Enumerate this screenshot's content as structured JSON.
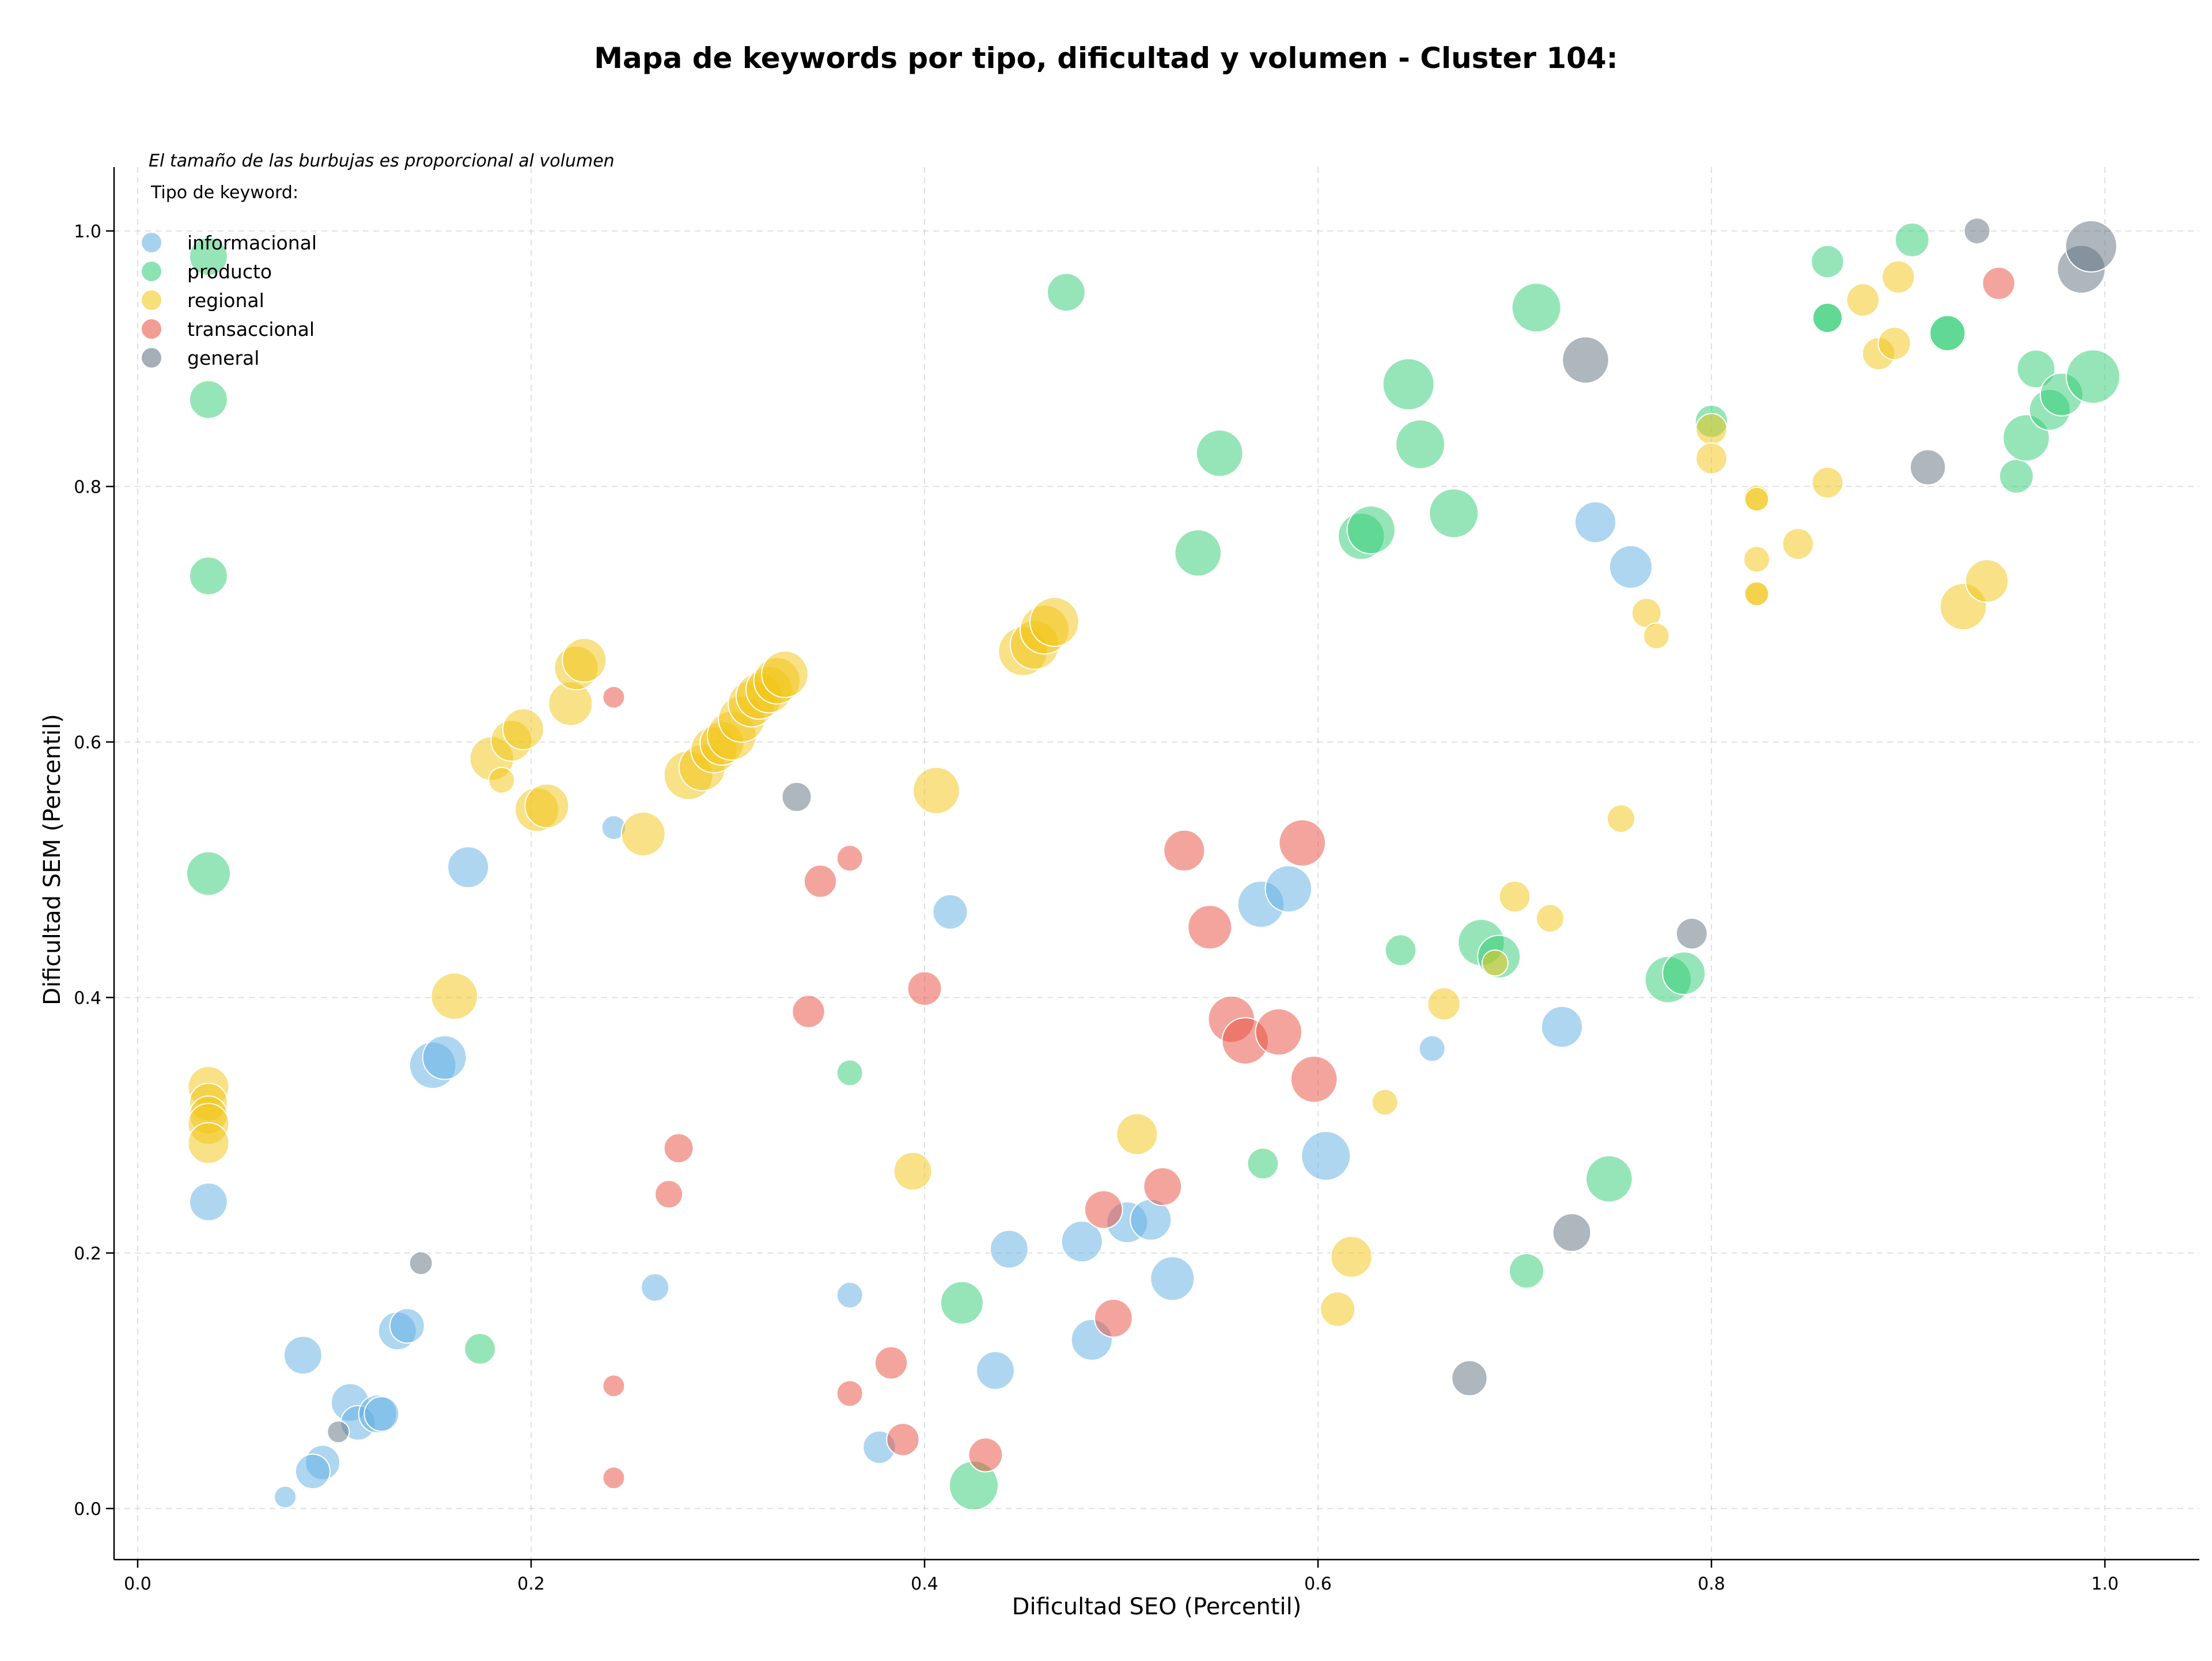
{
  "chart_data": {
    "type": "scatter",
    "title": "Mapa de keywords por tipo, dificultad y volumen - Cluster 104:",
    "xlabel": "Dificultad SEO (Percentil)",
    "ylabel": "Dificultad SEM (Percentil)",
    "note": "El tamaño de las burbujas es proporcional al volumen",
    "legend_title": "Tipo de keyword:",
    "legend_position": "top-left",
    "grid": true,
    "xlim": [
      -0.012,
      1.048
    ],
    "ylim": [
      -0.04,
      1.05
    ],
    "xticks": [
      "0.0",
      "0.2",
      "0.4",
      "0.6",
      "0.8",
      "1.0"
    ],
    "yticks": [
      "0.0",
      "0.2",
      "0.4",
      "0.6",
      "0.8",
      "1.0"
    ],
    "colors": {
      "informacional": "#5dade2",
      "producto": "#2ecc71",
      "regional": "#f1c40f",
      "transaccional": "#e74c3c",
      "general": "#5d6d7e"
    },
    "series": [
      {
        "name": "informacional",
        "points": [
          [
            0.036,
            0.24,
            3
          ],
          [
            0.084,
            0.12,
            3
          ],
          [
            0.108,
            0.083,
            3
          ],
          [
            0.112,
            0.067,
            2.5
          ],
          [
            0.122,
            0.074,
            3
          ],
          [
            0.124,
            0.074,
            2.5
          ],
          [
            0.094,
            0.036,
            2.5
          ],
          [
            0.089,
            0.029,
            2.5
          ],
          [
            0.075,
            0.009,
            1
          ],
          [
            0.132,
            0.139,
            3
          ],
          [
            0.137,
            0.143,
            2.5
          ],
          [
            0.15,
            0.347,
            4.5
          ],
          [
            0.156,
            0.353,
            4
          ],
          [
            0.168,
            0.502,
            3.5
          ],
          [
            0.242,
            0.533,
            1.2
          ],
          [
            0.263,
            0.173,
            1.6
          ],
          [
            0.362,
            0.167,
            1.4
          ],
          [
            0.377,
            0.048,
            2.2
          ],
          [
            0.413,
            0.467,
            2.5
          ],
          [
            0.436,
            0.108,
            3
          ],
          [
            0.443,
            0.203,
            3
          ],
          [
            0.48,
            0.209,
            3.5
          ],
          [
            0.485,
            0.132,
            3.5
          ],
          [
            0.503,
            0.224,
            3.5
          ],
          [
            0.515,
            0.226,
            3.5
          ],
          [
            0.526,
            0.18,
            4
          ],
          [
            0.571,
            0.473,
            4.5
          ],
          [
            0.585,
            0.485,
            4.5
          ],
          [
            0.604,
            0.276,
            5
          ],
          [
            0.658,
            0.36,
            1.4
          ],
          [
            0.724,
            0.377,
            3.5
          ],
          [
            0.741,
            0.772,
            3.5
          ],
          [
            0.759,
            0.737,
            3.8
          ]
        ]
      },
      {
        "name": "producto",
        "points": [
          [
            0.036,
            0.98,
            3
          ],
          [
            0.036,
            0.868,
            3
          ],
          [
            0.036,
            0.73,
            3
          ],
          [
            0.036,
            0.497,
            4
          ],
          [
            0.174,
            0.125,
            2
          ],
          [
            0.362,
            0.341,
            1.4
          ],
          [
            0.419,
            0.161,
            3.8
          ],
          [
            0.425,
            0.018,
            5
          ],
          [
            0.472,
            0.952,
            3
          ],
          [
            0.539,
            0.748,
            4.5
          ],
          [
            0.55,
            0.826,
            4.5
          ],
          [
            0.572,
            0.27,
            2
          ],
          [
            0.622,
            0.761,
            4.5
          ],
          [
            0.627,
            0.766,
            4.8
          ],
          [
            0.642,
            0.437,
            2
          ],
          [
            0.646,
            0.88,
            5.5
          ],
          [
            0.652,
            0.833,
            5
          ],
          [
            0.669,
            0.779,
            5
          ],
          [
            0.683,
            0.443,
            4.5
          ],
          [
            0.692,
            0.432,
            3.8
          ],
          [
            0.706,
            0.186,
            2.5
          ],
          [
            0.711,
            0.94,
            5
          ],
          [
            0.748,
            0.258,
            4.5
          ],
          [
            0.778,
            0.414,
            4.5
          ],
          [
            0.786,
            0.419,
            3.8
          ],
          [
            0.8,
            0.851,
            2.2
          ],
          [
            0.859,
            0.976,
            2.2
          ],
          [
            0.859,
            0.932,
            2
          ],
          [
            0.859,
            0.932,
            1.8
          ],
          [
            0.902,
            0.993,
            2.4
          ],
          [
            0.92,
            0.92,
            3
          ],
          [
            0.92,
            0.92,
            2.6
          ],
          [
            0.955,
            0.808,
            2.4
          ],
          [
            0.96,
            0.838,
            4.5
          ],
          [
            0.965,
            0.892,
            3
          ],
          [
            0.972,
            0.86,
            3.5
          ],
          [
            0.978,
            0.872,
            3.8
          ],
          [
            0.994,
            0.886,
            6
          ]
        ]
      },
      {
        "name": "regional",
        "points": [
          [
            0.036,
            0.33,
            3.5
          ],
          [
            0.036,
            0.318,
            3
          ],
          [
            0.036,
            0.308,
            3
          ],
          [
            0.036,
            0.301,
            3.5
          ],
          [
            0.036,
            0.286,
            3.5
          ],
          [
            0.161,
            0.401,
            4.5
          ],
          [
            0.18,
            0.587,
            4
          ],
          [
            0.185,
            0.57,
            1.4
          ],
          [
            0.19,
            0.601,
            3.5
          ],
          [
            0.196,
            0.61,
            3.5
          ],
          [
            0.203,
            0.547,
            4
          ],
          [
            0.208,
            0.55,
            4
          ],
          [
            0.22,
            0.63,
            4
          ],
          [
            0.223,
            0.658,
            4
          ],
          [
            0.227,
            0.664,
            4
          ],
          [
            0.257,
            0.528,
            4
          ],
          [
            0.28,
            0.574,
            5
          ],
          [
            0.287,
            0.58,
            4.5
          ],
          [
            0.293,
            0.594,
            4.5
          ],
          [
            0.297,
            0.599,
            4
          ],
          [
            0.302,
            0.605,
            5
          ],
          [
            0.307,
            0.618,
            4.5
          ],
          [
            0.312,
            0.63,
            4.5
          ],
          [
            0.316,
            0.636,
            4.5
          ],
          [
            0.321,
            0.641,
            4.5
          ],
          [
            0.325,
            0.648,
            4.5
          ],
          [
            0.329,
            0.653,
            4.5
          ],
          [
            0.394,
            0.264,
            3
          ],
          [
            0.406,
            0.562,
            4.5
          ],
          [
            0.45,
            0.671,
            5
          ],
          [
            0.456,
            0.676,
            5
          ],
          [
            0.461,
            0.688,
            5
          ],
          [
            0.466,
            0.694,
            5
          ],
          [
            0.508,
            0.293,
            3.5
          ],
          [
            0.61,
            0.156,
            2.5
          ],
          [
            0.617,
            0.197,
            3.5
          ],
          [
            0.634,
            0.318,
            1.4
          ],
          [
            0.664,
            0.395,
            2.2
          ],
          [
            0.69,
            0.427,
            1.4
          ],
          [
            0.7,
            0.479,
            2
          ],
          [
            0.718,
            0.462,
            1.6
          ],
          [
            0.754,
            0.54,
            1.6
          ],
          [
            0.767,
            0.701,
            1.8
          ],
          [
            0.772,
            0.683,
            1.4
          ],
          [
            0.8,
            0.845,
            2
          ],
          [
            0.8,
            0.822,
            2
          ],
          [
            0.823,
            0.791,
            1.4
          ],
          [
            0.823,
            0.79,
            1.2
          ],
          [
            0.823,
            0.743,
            1.4
          ],
          [
            0.823,
            0.716,
            1.4
          ],
          [
            0.823,
            0.716,
            1.2
          ],
          [
            0.844,
            0.755,
            2
          ],
          [
            0.859,
            0.803,
            2
          ],
          [
            0.877,
            0.946,
            2.2
          ],
          [
            0.885,
            0.904,
            2.2
          ],
          [
            0.893,
            0.912,
            2.2
          ],
          [
            0.895,
            0.964,
            2.2
          ],
          [
            0.928,
            0.706,
            4.5
          ],
          [
            0.94,
            0.726,
            3.8
          ]
        ]
      },
      {
        "name": "transaccional",
        "points": [
          [
            0.242,
            0.635,
            1
          ],
          [
            0.242,
            0.096,
            1
          ],
          [
            0.242,
            0.024,
            1
          ],
          [
            0.27,
            0.246,
            1.6
          ],
          [
            0.275,
            0.282,
            1.8
          ],
          [
            0.341,
            0.389,
            2.2
          ],
          [
            0.347,
            0.491,
            2.2
          ],
          [
            0.362,
            0.509,
            1.4
          ],
          [
            0.362,
            0.09,
            1.4
          ],
          [
            0.383,
            0.114,
            2.2
          ],
          [
            0.389,
            0.054,
            2.2
          ],
          [
            0.4,
            0.407,
            2.4
          ],
          [
            0.431,
            0.042,
            2.4
          ],
          [
            0.491,
            0.234,
            3
          ],
          [
            0.496,
            0.149,
            3
          ],
          [
            0.521,
            0.252,
            3
          ],
          [
            0.532,
            0.515,
            3.5
          ],
          [
            0.545,
            0.455,
            4
          ],
          [
            0.556,
            0.383,
            4.5
          ],
          [
            0.563,
            0.366,
            4.5
          ],
          [
            0.58,
            0.373,
            4.5
          ],
          [
            0.592,
            0.521,
            4.5
          ],
          [
            0.598,
            0.336,
            4.5
          ],
          [
            0.946,
            0.959,
            2.2
          ]
        ]
      },
      {
        "name": "general",
        "points": [
          [
            0.102,
            0.06,
            1
          ],
          [
            0.144,
            0.192,
            1.1
          ],
          [
            0.335,
            0.557,
            1.8
          ],
          [
            0.677,
            0.102,
            2.6
          ],
          [
            0.729,
            0.216,
            3
          ],
          [
            0.736,
            0.899,
            4.5
          ],
          [
            0.79,
            0.45,
            2
          ],
          [
            0.91,
            0.815,
            2.6
          ],
          [
            0.935,
            1.0,
            1.4
          ],
          [
            0.988,
            0.97,
            4.8
          ],
          [
            0.993,
            0.988,
            5.5
          ]
        ]
      }
    ]
  }
}
